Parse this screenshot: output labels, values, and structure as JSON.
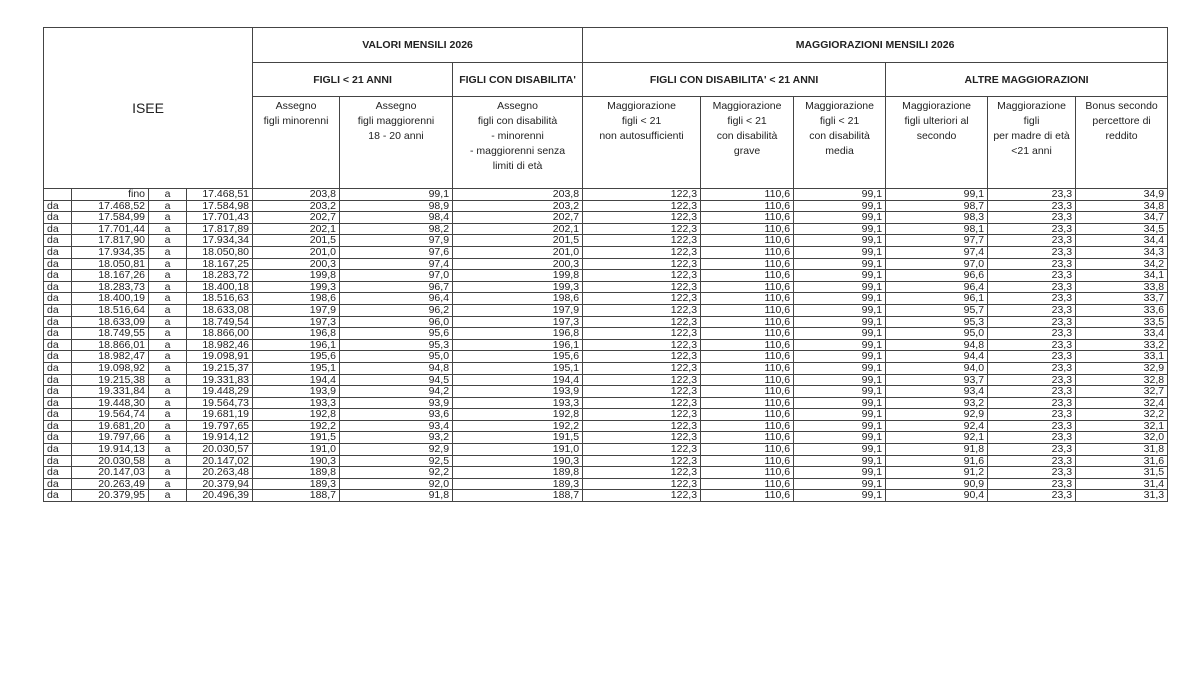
{
  "header": {
    "isee": "ISEE",
    "valori": "VALORI MENSILI 2026",
    "maggiorazioni": "MAGGIORAZIONI MENSILI 2026",
    "figli_21": "FIGLI  < 21 ANNI",
    "figli_disab": "FIGLI CON DISABILITA'",
    "figli_disab_21": "FIGLI CON DISABILITA' < 21 ANNI",
    "altre": "ALTRE MAGGIORAZIONI",
    "columns": [
      "Assegno\nfigli minorenni",
      "Assegno\nfigli  maggiorenni\n18 -  20 anni",
      "Assegno\nfigli con disabilità\n- minorenni\n- maggiorenni senza\nlimiti di età",
      "Maggiorazione\nfigli  < 21\nnon autosufficienti",
      "Maggiorazione\nfigli < 21\ncon disabilità\ngrave",
      "Maggiorazione\nfigli < 21\ncon disabilità\nmedia",
      "Maggiorazione\nfigli ulteriori al\nsecondo",
      "Maggiorazione\nfigli\nper madre di età\n<21 anni",
      "Bonus secondo\npercettore di\nreddito"
    ]
  },
  "rows": [
    [
      "",
      "fino",
      "a",
      "17.468,51",
      "203,8",
      "99,1",
      "203,8",
      "122,3",
      "110,6",
      "99,1",
      "99,1",
      "23,3",
      "34,9"
    ],
    [
      "da",
      "17.468,52",
      "a",
      "17.584,98",
      "203,2",
      "98,9",
      "203,2",
      "122,3",
      "110,6",
      "99,1",
      "98,7",
      "23,3",
      "34,8"
    ],
    [
      "da",
      "17.584,99",
      "a",
      "17.701,43",
      "202,7",
      "98,4",
      "202,7",
      "122,3",
      "110,6",
      "99,1",
      "98,3",
      "23,3",
      "34,7"
    ],
    [
      "da",
      "17.701,44",
      "a",
      "17.817,89",
      "202,1",
      "98,2",
      "202,1",
      "122,3",
      "110,6",
      "99,1",
      "98,1",
      "23,3",
      "34,5"
    ],
    [
      "da",
      "17.817,90",
      "a",
      "17.934,34",
      "201,5",
      "97,9",
      "201,5",
      "122,3",
      "110,6",
      "99,1",
      "97,7",
      "23,3",
      "34,4"
    ],
    [
      "da",
      "17.934,35",
      "a",
      "18.050,80",
      "201,0",
      "97,6",
      "201,0",
      "122,3",
      "110,6",
      "99,1",
      "97,4",
      "23,3",
      "34,3"
    ],
    [
      "da",
      "18.050,81",
      "a",
      "18.167,25",
      "200,3",
      "97,4",
      "200,3",
      "122,3",
      "110,6",
      "99,1",
      "97,0",
      "23,3",
      "34,2"
    ],
    [
      "da",
      "18.167,26",
      "a",
      "18.283,72",
      "199,8",
      "97,0",
      "199,8",
      "122,3",
      "110,6",
      "99,1",
      "96,6",
      "23,3",
      "34,1"
    ],
    [
      "da",
      "18.283,73",
      "a",
      "18.400,18",
      "199,3",
      "96,7",
      "199,3",
      "122,3",
      "110,6",
      "99,1",
      "96,4",
      "23,3",
      "33,8"
    ],
    [
      "da",
      "18.400,19",
      "a",
      "18.516,63",
      "198,6",
      "96,4",
      "198,6",
      "122,3",
      "110,6",
      "99,1",
      "96,1",
      "23,3",
      "33,7"
    ],
    [
      "da",
      "18.516,64",
      "a",
      "18.633,08",
      "197,9",
      "96,2",
      "197,9",
      "122,3",
      "110,6",
      "99,1",
      "95,7",
      "23,3",
      "33,6"
    ],
    [
      "da",
      "18.633,09",
      "a",
      "18.749,54",
      "197,3",
      "96,0",
      "197,3",
      "122,3",
      "110,6",
      "99,1",
      "95,3",
      "23,3",
      "33,5"
    ],
    [
      "da",
      "18.749,55",
      "a",
      "18.866,00",
      "196,8",
      "95,6",
      "196,8",
      "122,3",
      "110,6",
      "99,1",
      "95,0",
      "23,3",
      "33,4"
    ],
    [
      "da",
      "18.866,01",
      "a",
      "18.982,46",
      "196,1",
      "95,3",
      "196,1",
      "122,3",
      "110,6",
      "99,1",
      "94,8",
      "23,3",
      "33,2"
    ],
    [
      "da",
      "18.982,47",
      "a",
      "19.098,91",
      "195,6",
      "95,0",
      "195,6",
      "122,3",
      "110,6",
      "99,1",
      "94,4",
      "23,3",
      "33,1"
    ],
    [
      "da",
      "19.098,92",
      "a",
      "19.215,37",
      "195,1",
      "94,8",
      "195,1",
      "122,3",
      "110,6",
      "99,1",
      "94,0",
      "23,3",
      "32,9"
    ],
    [
      "da",
      "19.215,38",
      "a",
      "19.331,83",
      "194,4",
      "94,5",
      "194,4",
      "122,3",
      "110,6",
      "99,1",
      "93,7",
      "23,3",
      "32,8"
    ],
    [
      "da",
      "19.331,84",
      "a",
      "19.448,29",
      "193,9",
      "94,2",
      "193,9",
      "122,3",
      "110,6",
      "99,1",
      "93,4",
      "23,3",
      "32,7"
    ],
    [
      "da",
      "19.448,30",
      "a",
      "19.564,73",
      "193,3",
      "93,9",
      "193,3",
      "122,3",
      "110,6",
      "99,1",
      "93,2",
      "23,3",
      "32,4"
    ],
    [
      "da",
      "19.564,74",
      "a",
      "19.681,19",
      "192,8",
      "93,6",
      "192,8",
      "122,3",
      "110,6",
      "99,1",
      "92,9",
      "23,3",
      "32,2"
    ],
    [
      "da",
      "19.681,20",
      "a",
      "19.797,65",
      "192,2",
      "93,4",
      "192,2",
      "122,3",
      "110,6",
      "99,1",
      "92,4",
      "23,3",
      "32,1"
    ],
    [
      "da",
      "19.797,66",
      "a",
      "19.914,12",
      "191,5",
      "93,2",
      "191,5",
      "122,3",
      "110,6",
      "99,1",
      "92,1",
      "23,3",
      "32,0"
    ],
    [
      "da",
      "19.914,13",
      "a",
      "20.030,57",
      "191,0",
      "92,9",
      "191,0",
      "122,3",
      "110,6",
      "99,1",
      "91,8",
      "23,3",
      "31,8"
    ],
    [
      "da",
      "20.030,58",
      "a",
      "20.147,02",
      "190,3",
      "92,5",
      "190,3",
      "122,3",
      "110,6",
      "99,1",
      "91,6",
      "23,3",
      "31,6"
    ],
    [
      "da",
      "20.147,03",
      "a",
      "20.263,48",
      "189,8",
      "92,2",
      "189,8",
      "122,3",
      "110,6",
      "99,1",
      "91,2",
      "23,3",
      "31,5"
    ],
    [
      "da",
      "20.263,49",
      "a",
      "20.379,94",
      "189,3",
      "92,0",
      "189,3",
      "122,3",
      "110,6",
      "99,1",
      "90,9",
      "23,3",
      "31,4"
    ],
    [
      "da",
      "20.379,95",
      "a",
      "20.496,39",
      "188,7",
      "91,8",
      "188,7",
      "122,3",
      "110,6",
      "99,1",
      "90,4",
      "23,3",
      "31,3"
    ]
  ]
}
